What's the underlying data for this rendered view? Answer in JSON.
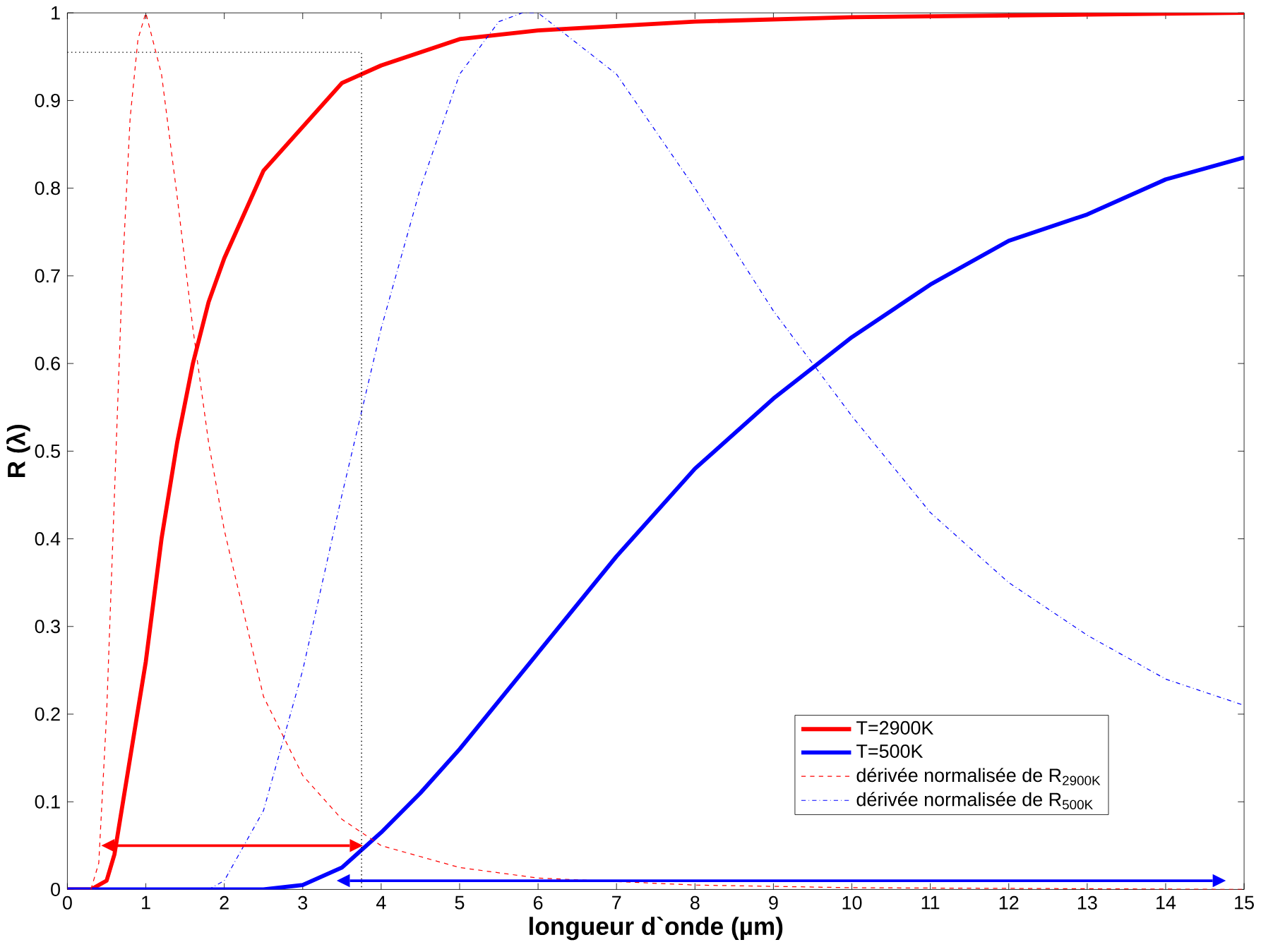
{
  "chart_data": {
    "type": "line",
    "xlabel": "longueur d`onde (µm)",
    "ylabel": "R (λ)",
    "xlim": [
      0,
      15
    ],
    "ylim": [
      0,
      1
    ],
    "xticks": [
      0,
      1,
      2,
      3,
      4,
      5,
      6,
      7,
      8,
      9,
      10,
      11,
      12,
      13,
      14,
      15
    ],
    "yticks": [
      0,
      0.1,
      0.2,
      0.3,
      0.4,
      0.5,
      0.6,
      0.7,
      0.8,
      0.9,
      1
    ],
    "grid": false,
    "legend": "bottom right",
    "marker": "none",
    "series": [
      {
        "name": "T=2900K",
        "color": "#ff0000",
        "line_style": "solid",
        "x": [
          0,
          0.3,
          0.5,
          0.6,
          0.8,
          1.0,
          1.2,
          1.4,
          1.6,
          1.8,
          2.0,
          2.5,
          3.0,
          3.5,
          4.0,
          5.0,
          6.0,
          8.0,
          10.0,
          15.0
        ],
        "values": [
          0,
          0,
          0.01,
          0.04,
          0.15,
          0.26,
          0.4,
          0.51,
          0.6,
          0.67,
          0.72,
          0.82,
          0.87,
          0.92,
          0.94,
          0.97,
          0.98,
          0.99,
          0.995,
          1.0
        ]
      },
      {
        "name": "T=500K",
        "color": "#0000ff",
        "line_style": "solid",
        "x": [
          0,
          2.5,
          3.0,
          3.5,
          4.0,
          4.5,
          5.0,
          6.0,
          7.0,
          8.0,
          9.0,
          10.0,
          11.0,
          12.0,
          13.0,
          14.0,
          15.0
        ],
        "values": [
          0,
          0,
          0.005,
          0.025,
          0.065,
          0.11,
          0.16,
          0.27,
          0.38,
          0.48,
          0.56,
          0.63,
          0.69,
          0.74,
          0.77,
          0.81,
          0.835
        ]
      },
      {
        "name": "dérivée normalisée de R$_{2900K}$",
        "color": "#ff0000",
        "line_style": "dashed",
        "x": [
          0.3,
          0.4,
          0.5,
          0.6,
          0.7,
          0.8,
          0.9,
          1.0,
          1.2,
          1.4,
          1.6,
          1.8,
          2.0,
          2.5,
          3.0,
          3.5,
          4.0,
          5.0,
          6.0,
          8.0,
          10.0,
          15.0
        ],
        "values": [
          0,
          0.03,
          0.2,
          0.45,
          0.7,
          0.88,
          0.97,
          1.0,
          0.93,
          0.79,
          0.64,
          0.51,
          0.41,
          0.22,
          0.13,
          0.08,
          0.05,
          0.025,
          0.013,
          0.005,
          0.002,
          0
        ]
      },
      {
        "name": "dérivée normalisée de R$_{500K}$",
        "color": "#0000ff",
        "line_style": "dashdot",
        "x": [
          1.8,
          2.0,
          2.5,
          3.0,
          3.5,
          4.0,
          4.5,
          5.0,
          5.5,
          5.8,
          6.0,
          7.0,
          8.0,
          9.0,
          10.0,
          11.0,
          12.0,
          13.0,
          14.0,
          15.0
        ],
        "values": [
          0,
          0.01,
          0.09,
          0.25,
          0.45,
          0.64,
          0.8,
          0.93,
          0.99,
          1.0,
          1.0,
          0.93,
          0.8,
          0.66,
          0.54,
          0.43,
          0.35,
          0.29,
          0.24,
          0.21
        ]
      },
      {
        "color": "#000000",
        "line_style": "dotted",
        "x": [
          0,
          3.75,
          3.75
        ],
        "values": [
          0.955,
          0.955,
          0
        ]
      },
      {
        "color": "#ff0000",
        "line_style": "solid",
        "marker": "triangle",
        "x": [
          0.6,
          3.6
        ],
        "values": [
          0.05,
          0.05
        ]
      },
      {
        "color": "#0000ff",
        "line_style": "solid",
        "marker": "triangle",
        "x": [
          3.6,
          14.6
        ],
        "values": [
          0.01,
          0.01
        ]
      }
    ]
  }
}
